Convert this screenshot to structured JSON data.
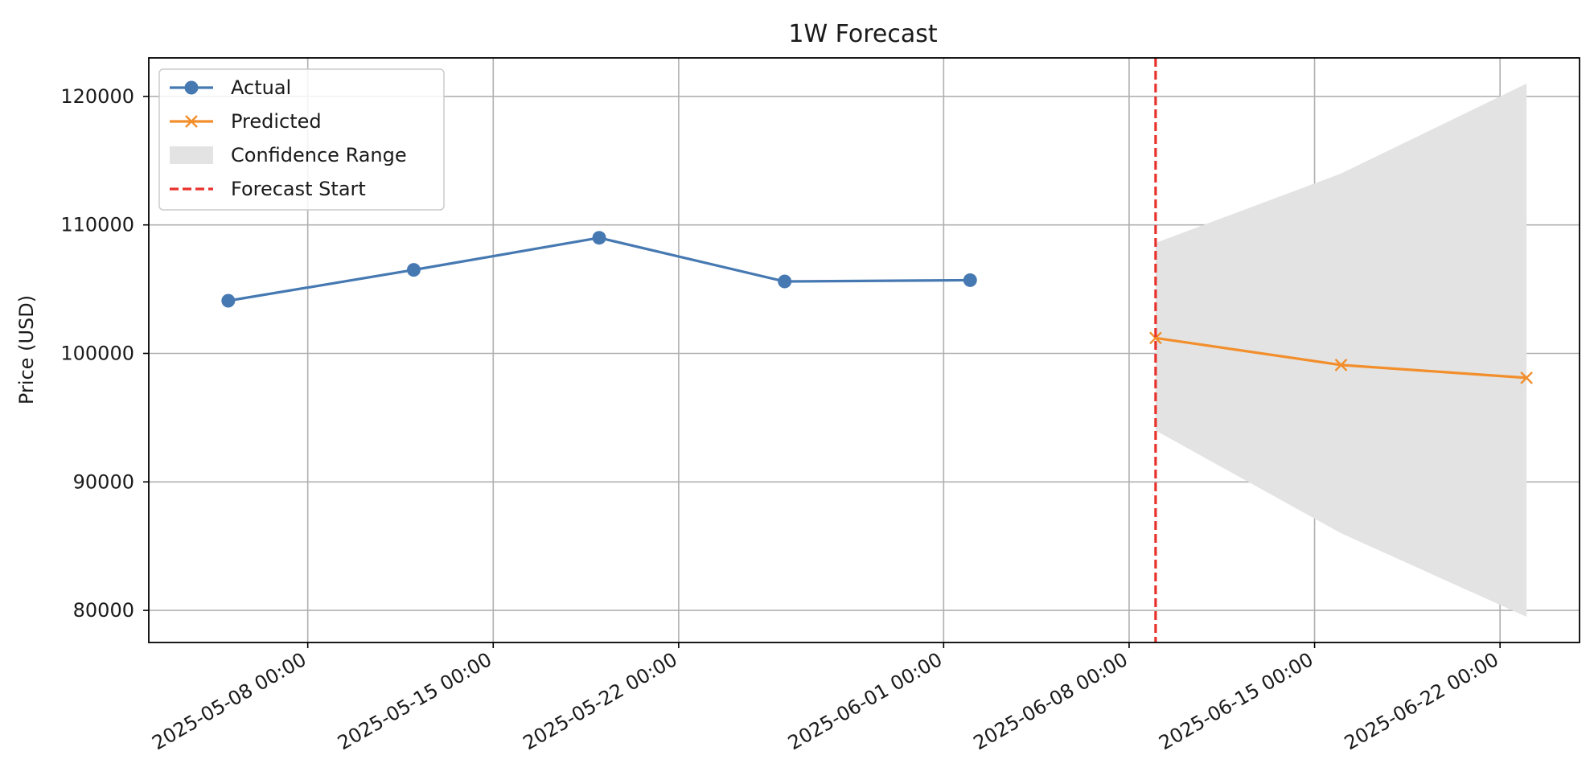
{
  "chart_data": {
    "type": "line",
    "title": "1W Forecast",
    "xlabel": "",
    "ylabel": "Price (USD)",
    "x_tick_labels": [
      "2025-05-08 00:00",
      "2025-05-15 00:00",
      "2025-05-22 00:00",
      "2025-06-01 00:00",
      "2025-06-08 00:00",
      "2025-06-15 00:00",
      "2025-06-22 00:00"
    ],
    "y_ticks": [
      80000,
      90000,
      100000,
      110000,
      120000
    ],
    "ylim": [
      77500,
      123000
    ],
    "xlim": [
      "2025-05-02",
      "2025-06-25"
    ],
    "grid": true,
    "legend_position": "top-left",
    "series": [
      {
        "name": "Actual",
        "marker": "circle",
        "color": "#4679b2",
        "points": [
          {
            "x": "2025-05-05",
            "y": 104100
          },
          {
            "x": "2025-05-12",
            "y": 106500
          },
          {
            "x": "2025-05-19",
            "y": 109000
          },
          {
            "x": "2025-05-26",
            "y": 105600
          },
          {
            "x": "2025-06-02",
            "y": 105700
          }
        ]
      },
      {
        "name": "Predicted",
        "marker": "x",
        "color": "#f28e2b",
        "points": [
          {
            "x": "2025-06-09",
            "y": 101200
          },
          {
            "x": "2025-06-16",
            "y": 99100
          },
          {
            "x": "2025-06-23",
            "y": 98100
          }
        ]
      }
    ],
    "confidence_range": {
      "name": "Confidence Range",
      "color": "#e3e3e3",
      "points": [
        {
          "x": "2025-06-09",
          "low": 94000,
          "high": 108600
        },
        {
          "x": "2025-06-16",
          "low": 86000,
          "high": 114000
        },
        {
          "x": "2025-06-23",
          "low": 79500,
          "high": 121000
        }
      ]
    },
    "forecast_start": {
      "name": "Forecast Start",
      "x": "2025-06-09",
      "color": "#e8312a",
      "style": "dashed"
    }
  }
}
